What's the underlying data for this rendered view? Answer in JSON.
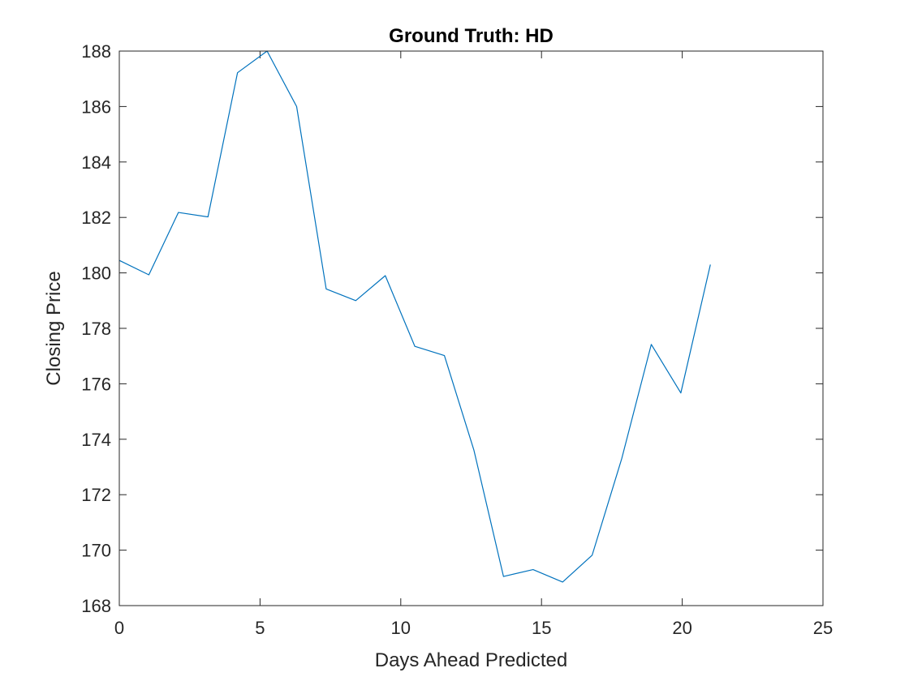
{
  "chart_data": {
    "type": "line",
    "title": "Ground Truth: HD",
    "xlabel": "Days Ahead Predicted",
    "ylabel": "Closing Price",
    "xlim": [
      0,
      25
    ],
    "ylim": [
      168,
      188
    ],
    "xticks": [
      0,
      5,
      10,
      15,
      20,
      25
    ],
    "yticks": [
      168,
      170,
      172,
      174,
      176,
      178,
      180,
      182,
      184,
      186,
      188
    ],
    "grid": false,
    "series": [
      {
        "color": "#0072BD",
        "x": [
          0,
          1.05,
          2.1,
          3.15,
          4.2,
          5.25,
          6.3,
          7.35,
          8.4,
          9.45,
          10.5,
          11.55,
          12.6,
          13.65,
          14.7,
          15.75,
          16.8,
          17.85,
          18.9,
          19.95,
          21
        ],
        "y": [
          180.45,
          179.93,
          182.18,
          182.02,
          187.22,
          188.0,
          186.0,
          179.42,
          179.0,
          179.9,
          177.35,
          177.02,
          173.6,
          169.05,
          169.3,
          168.85,
          169.82,
          173.3,
          177.42,
          175.67,
          180.3
        ]
      }
    ]
  }
}
